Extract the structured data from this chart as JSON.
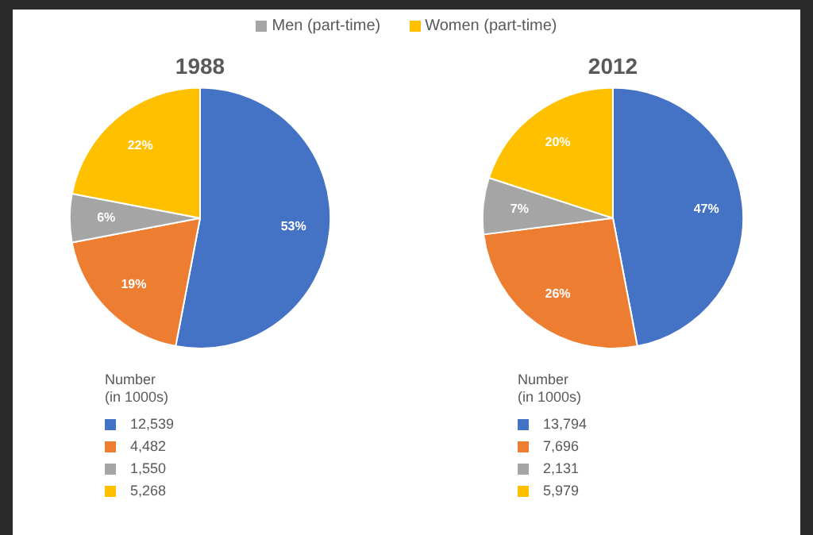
{
  "chart_data": [
    {
      "type": "pie",
      "title": "1988",
      "categories": [
        null,
        null,
        "Men (part-time)",
        "Women (part-time)"
      ],
      "values": [
        53,
        19,
        6,
        22
      ],
      "colors": [
        "#4472c4",
        "#ed7d31",
        "#a5a5a5",
        "#ffc000"
      ],
      "value_labels": [
        "53%",
        "19%",
        "6%",
        "22%"
      ],
      "legend": "top",
      "annotations": [
        "Number\n(in 1000s)",
        "12,539",
        "4,482",
        "1,550",
        "5,268"
      ]
    },
    {
      "type": "pie",
      "title": "2012",
      "categories": [
        null,
        null,
        null,
        null
      ],
      "values": [
        47,
        26,
        7,
        20
      ],
      "colors": [
        "#4472c4",
        "#ed7d31",
        "#a5a5a5",
        "#ffc000"
      ],
      "value_labels": [
        "47%",
        "26%",
        "7%",
        "20%"
      ],
      "annotations": [
        "Number\n(in 1000s)",
        "13,794",
        "7,696",
        "2,131",
        "5,979"
      ]
    }
  ]
}
